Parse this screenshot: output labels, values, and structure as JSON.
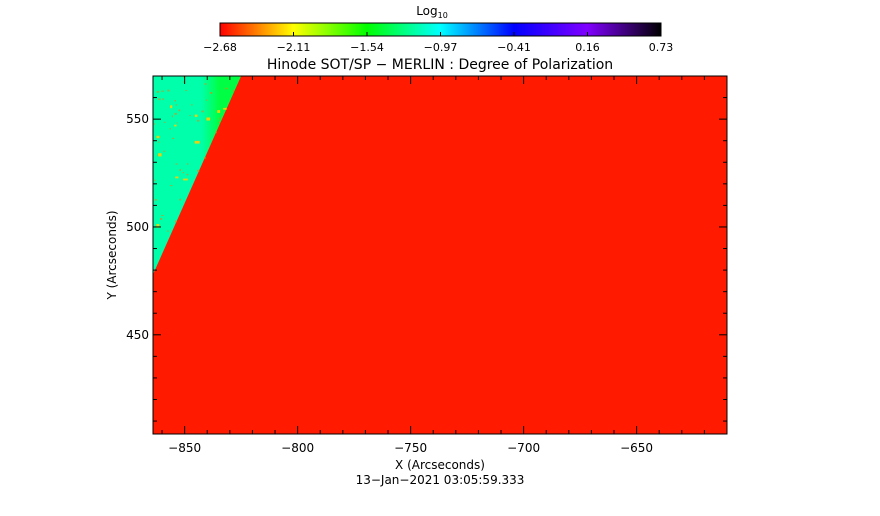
{
  "colorbar": {
    "label_main": "Log",
    "label_sub": "10",
    "ticks": [
      "−2.68",
      "−2.11",
      "−1.54",
      "−0.97",
      "−0.41",
      "0.16",
      "0.73"
    ],
    "colors": [
      "#ff0000",
      "#ffff00",
      "#00ff00",
      "#00ffff",
      "#0000ff",
      "#8000ff",
      "#000000"
    ]
  },
  "chart_data": {
    "type": "heatmap",
    "title": "Hinode SOT/SP − MERLIN : Degree of Polarization",
    "xlabel": "X (Arcseconds)",
    "ylabel": "Y (Arcseconds)",
    "xlim": [
      -864,
      -610
    ],
    "ylim": [
      404,
      570
    ],
    "xticks": [
      -850,
      -800,
      -750,
      -700,
      -650
    ],
    "xtick_labels": [
      "−850",
      "−800",
      "−750",
      "−700",
      "−650"
    ],
    "yticks": [
      450,
      500,
      550
    ],
    "ytick_labels": [
      "450",
      "500",
      "550"
    ],
    "limb_boundary": [
      [
        -864,
        478
      ],
      [
        -825,
        570
      ]
    ],
    "colors": {
      "disk": "#ff1a00",
      "offdisk": "#00ff44",
      "offdisk_far": "#00ffaa",
      "features": "#ffcc00"
    }
  },
  "footer": {
    "timestamp": "13−Jan−2021 03:05:59.333"
  }
}
